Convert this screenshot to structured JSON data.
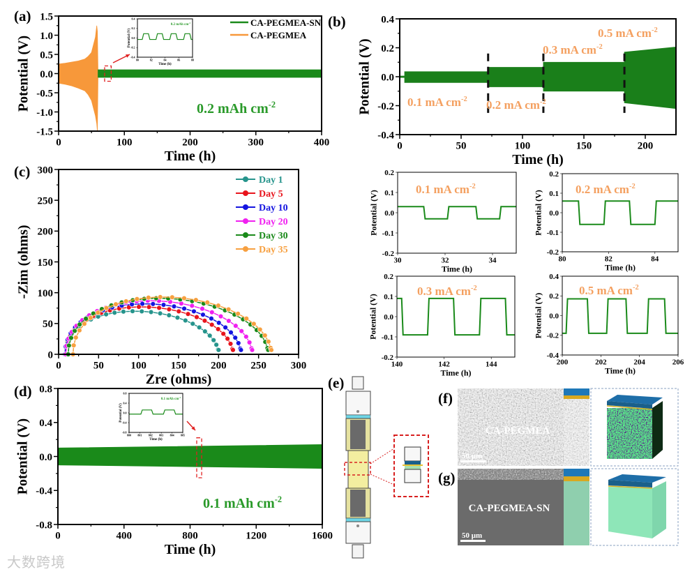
{
  "figure": {
    "panel_labels": {
      "a": "(a)",
      "b": "(b)",
      "c": "(c)",
      "d": "(d)",
      "e": "(e)",
      "f": "(f)",
      "g": "(g)"
    },
    "watermark": "大数跨境",
    "sem": {
      "f_label": "CA-PEGMEA",
      "g_label": "CA-PEGMEA-SN",
      "scale_bar_f": "50 μm",
      "scale_bar_g": "50 μm"
    }
  },
  "chart_data": [
    {
      "id": "a",
      "type": "line",
      "title": "",
      "xlabel": "Time (h)",
      "ylabel": "Potential (V)",
      "xlim": [
        0,
        400
      ],
      "ylim": [
        -1.5,
        1.5
      ],
      "xticks": [
        0,
        100,
        200,
        300,
        400
      ],
      "xtick_labels": [
        "0",
        "100",
        "200",
        "300",
        "400"
      ],
      "yticks": [
        -1.5,
        -1,
        -0.5,
        0,
        0.5,
        1,
        1.5
      ],
      "ytick_labels": [
        "-1.5",
        "-1.0",
        "-0.5",
        "0.0",
        "0.5",
        "1.0",
        "1.5"
      ],
      "legend": {
        "placement": "top-right",
        "entries": [
          {
            "label": "CA-PEGMEA-SN",
            "color": "#1a8a1a"
          },
          {
            "label": "CA-PEGMEA",
            "color": "#f7983a"
          }
        ]
      },
      "series": [
        {
          "name": "CA-PEGMEA",
          "kind": "envelope",
          "color": "#f7983a",
          "x": [
            0,
            10,
            20,
            30,
            40,
            45,
            50,
            53,
            56,
            58,
            59,
            60
          ],
          "upper": [
            0.25,
            0.27,
            0.3,
            0.33,
            0.38,
            0.45,
            0.55,
            0.75,
            0.95,
            1.25,
            1.1,
            0
          ],
          "lower": [
            -0.25,
            -0.28,
            -0.32,
            -0.38,
            -0.45,
            -0.55,
            -0.7,
            -0.9,
            -1.1,
            -1.3,
            -1.5,
            0
          ]
        },
        {
          "name": "CA-PEGMEA-SN",
          "kind": "envelope",
          "color": "#1a8a1a",
          "x": [
            60,
            400
          ],
          "upper": [
            0.1,
            0.1
          ],
          "lower": [
            -0.1,
            -0.1
          ]
        }
      ],
      "annotations": [
        {
          "text": "0.2 mAh cm",
          "sup": "-2",
          "color": "#2a9a2a"
        }
      ],
      "highlight": {
        "x": [
          70,
          80
        ],
        "y": [
          -0.2,
          0.2
        ]
      },
      "inset": {
        "xlabel": "Time (h)",
        "ylabel": "Potential (V)",
        "xlim": [
          80,
          88
        ],
        "ylim": [
          -0.4,
          0.4
        ],
        "xticks": [
          80,
          82,
          84,
          86,
          88
        ],
        "xtick_labels": [
          "80",
          "82",
          "84",
          "86",
          "88"
        ],
        "yticks": [
          -0.4,
          -0.2,
          0,
          0.2,
          0.4
        ],
        "ytick_labels": [
          "-0.4",
          "-0.2",
          "0.0",
          "0.2",
          "0.4"
        ],
        "wave": {
          "low": -0.03,
          "high": 0.09,
          "start": "low",
          "transitions": [
            80.7,
            81.6,
            82.7,
            83.6,
            84.7,
            85.6,
            86.7,
            87.6
          ]
        },
        "annotation": {
          "text": "0.2 mAh cm",
          "sup": "-2",
          "color": "#2a9a2a"
        }
      }
    },
    {
      "id": "b",
      "type": "line",
      "xlabel": "Time (h)",
      "ylabel": "Potential (V)",
      "xlim": [
        0,
        225
      ],
      "ylim": [
        -0.4,
        0.4
      ],
      "xticks": [
        0,
        50,
        100,
        150,
        200
      ],
      "xtick_labels": [
        "0",
        "50",
        "100",
        "150",
        "200"
      ],
      "yticks": [
        -0.4,
        -0.2,
        0,
        0.2,
        0.4
      ],
      "ytick_labels": [
        "-0.4",
        "-0.2",
        "0.0",
        "0.2",
        "0.4"
      ],
      "series": [
        {
          "name": "CA-PEGMEA-SN rate",
          "kind": "envelope",
          "color": "#1a7f1a",
          "x": [
            0,
            4,
            4,
            72,
            72,
            117,
            117,
            183,
            183,
            225
          ],
          "upper": [
            0.005,
            0.005,
            0.035,
            0.035,
            0.065,
            0.065,
            0.1,
            0.1,
            0.17,
            0.205
          ],
          "lower": [
            -0.005,
            -0.005,
            -0.04,
            -0.04,
            -0.07,
            -0.07,
            -0.1,
            -0.1,
            -0.18,
            -0.22
          ]
        }
      ],
      "dividers": [
        72,
        117,
        183
      ],
      "annotations": [
        {
          "text": "0.1 mA cm",
          "sup": "-2",
          "color": "#f4a060"
        },
        {
          "text": "0.2 mA cm",
          "sup": "-2",
          "color": "#f4a060"
        },
        {
          "text": "0.3 mA cm",
          "sup": "-2",
          "color": "#f4a060"
        },
        {
          "text": "0.5 mA cm",
          "sup": "-2",
          "color": "#f4a060"
        }
      ]
    },
    {
      "id": "c",
      "type": "scatter",
      "xlabel": "Zre (ohms)",
      "ylabel": "-Zim (ohms)",
      "xlim": [
        0,
        300
      ],
      "ylim": [
        0,
        300
      ],
      "xticks": [
        0,
        50,
        100,
        150,
        200,
        250,
        300
      ],
      "xtick_labels": [
        "0",
        "50",
        "100",
        "150",
        "200",
        "250",
        "300"
      ],
      "yticks": [
        0,
        50,
        100,
        150,
        200,
        250,
        300
      ],
      "ytick_labels": [
        "0",
        "50",
        "100",
        "150",
        "200",
        "250",
        "300"
      ],
      "legend": {
        "placement": "top-right"
      },
      "series": [
        {
          "name": "Day 1",
          "color": "#26948c",
          "r_start": 8,
          "r_end": 200,
          "peak": 70
        },
        {
          "name": "Day 5",
          "color": "#e8141c",
          "r_start": 8,
          "r_end": 218,
          "peak": 77
        },
        {
          "name": "Day 10",
          "color": "#1414e0",
          "r_start": 8,
          "r_end": 228,
          "peak": 82
        },
        {
          "name": "Day 20",
          "color": "#f020f0",
          "r_start": 9,
          "r_end": 242,
          "peak": 87
        },
        {
          "name": "Day 30",
          "color": "#1a8a1a",
          "r_start": 12,
          "r_end": 262,
          "peak": 91
        },
        {
          "name": "Day 35",
          "color": "#f7a040",
          "r_start": 18,
          "r_end": 266,
          "peak": 93
        }
      ]
    },
    {
      "id": "d",
      "type": "line",
      "xlabel": "Time (h)",
      "ylabel": "Potential (V)",
      "xlim": [
        0,
        1600
      ],
      "ylim": [
        -0.8,
        0.8
      ],
      "xticks": [
        0,
        400,
        800,
        1200,
        1600
      ],
      "xtick_labels": [
        "0",
        "400",
        "800",
        "1200",
        "1600"
      ],
      "yticks": [
        -0.8,
        -0.4,
        0,
        0.4,
        0.8
      ],
      "ytick_labels": [
        "-0.8",
        "-0.4",
        "0.0",
        "0.4",
        "0.8"
      ],
      "series": [
        {
          "name": "CA-PEGMEA-SN",
          "kind": "envelope",
          "color": "#1a8a1a",
          "x": [
            0,
            1600
          ],
          "upper": [
            0.1,
            0.14
          ],
          "lower": [
            -0.1,
            -0.14
          ]
        }
      ],
      "annotations": [
        {
          "text": "0.1 mAh cm",
          "sup": "-2",
          "color": "#2a9a2a"
        }
      ],
      "highlight": {
        "x": [
          840,
          870
        ],
        "y": [
          -0.25,
          0.22
        ]
      },
      "inset": {
        "xlabel": "Time (h)",
        "ylabel": "Potential (V)",
        "xlim": [
          800,
          805
        ],
        "ylim": [
          -0.8,
          0.8
        ],
        "xticks": [
          800,
          801,
          802,
          803,
          804,
          805
        ],
        "xtick_labels": [
          "800",
          "801",
          "802",
          "803",
          "804",
          "805"
        ],
        "yticks": [
          -0.8,
          -0.4,
          0,
          0.4,
          0.8
        ],
        "ytick_labels": [
          "-0.8",
          "-0.4",
          "0.0",
          "0.4",
          "0.8"
        ],
        "wave": {
          "low": -0.05,
          "high": 0.12,
          "start": "low",
          "transitions": [
            801.1,
            802.1,
            803.2,
            804.2
          ]
        },
        "annotation": {
          "text": "0.1 mAh cm",
          "sup": "-2",
          "color": "#2a9a2a"
        }
      }
    },
    {
      "id": "s1",
      "type": "line",
      "xlabel": "Time (h)",
      "ylabel": "Potential (V)",
      "xlim": [
        30,
        35
      ],
      "ylim": [
        -0.2,
        0.2
      ],
      "xticks": [
        30,
        32,
        34
      ],
      "xtick_labels": [
        "30",
        "32",
        "34"
      ],
      "yticks": [
        -0.2,
        -0.1,
        0,
        0.1,
        0.2
      ],
      "ytick_labels": [
        "-0.2",
        "-0.1",
        "0.0",
        "0.1",
        "0.2"
      ],
      "series": [
        {
          "name": "0.1 mA cm-2",
          "kind": "wave",
          "color": "#1a8a1a",
          "low": -0.03,
          "high": 0.03,
          "start": "high",
          "transitions": [
            31.1,
            32.1,
            33.3,
            34.3
          ]
        }
      ],
      "annotations": [
        {
          "text": "0.1 mA cm",
          "sup": "-2",
          "color": "#f4a060"
        }
      ]
    },
    {
      "id": "s2",
      "type": "line",
      "xlabel": "Time (h)",
      "ylabel": "Potential (V)",
      "xlim": [
        80,
        85
      ],
      "ylim": [
        -0.2,
        0.2
      ],
      "xticks": [
        80,
        82,
        84
      ],
      "xtick_labels": [
        "80",
        "82",
        "84"
      ],
      "yticks": [
        -0.2,
        -0.1,
        0,
        0.1,
        0.2
      ],
      "ytick_labels": [
        "-0.2",
        "-0.1",
        "0.0",
        "0.1",
        "0.2"
      ],
      "series": [
        {
          "name": "0.2 mA cm-2",
          "kind": "wave",
          "color": "#1a8a1a",
          "low": -0.06,
          "high": 0.06,
          "start": "high",
          "transitions": [
            80.7,
            81.8,
            82.9,
            84.0
          ]
        }
      ],
      "annotations": [
        {
          "text": "0.2 mA cm",
          "sup": "-2",
          "color": "#f4a060"
        }
      ]
    },
    {
      "id": "s3",
      "type": "line",
      "xlabel": "Time (h)",
      "ylabel": "Potential (V)",
      "xlim": [
        140,
        145
      ],
      "ylim": [
        -0.2,
        0.2
      ],
      "xticks": [
        140,
        142,
        144
      ],
      "xtick_labels": [
        "140",
        "142",
        "144"
      ],
      "yticks": [
        -0.2,
        -0.1,
        0,
        0.1,
        0.2
      ],
      "ytick_labels": [
        "-0.2",
        "-0.1",
        "0.0",
        "0.1",
        "0.2"
      ],
      "series": [
        {
          "name": "0.3 mA cm-2",
          "kind": "wave",
          "color": "#1a8a1a",
          "low": -0.09,
          "high": 0.09,
          "start": "high",
          "transitions": [
            140.2,
            141.3,
            142.4,
            143.5,
            144.6
          ]
        }
      ],
      "annotations": [
        {
          "text": "0.3 mA cm",
          "sup": "-2",
          "color": "#f4a060"
        }
      ]
    },
    {
      "id": "s4",
      "type": "line",
      "xlabel": "Time (h)",
      "ylabel": "Potential (V)",
      "xlim": [
        200,
        206
      ],
      "ylim": [
        -0.4,
        0.4
      ],
      "xticks": [
        200,
        202,
        204,
        206
      ],
      "xtick_labels": [
        "200",
        "202",
        "204",
        "206"
      ],
      "yticks": [
        -0.4,
        -0.2,
        0,
        0.2,
        0.4
      ],
      "ytick_labels": [
        "-0.4",
        "-0.2",
        "0.0",
        "0.2",
        "0.4"
      ],
      "series": [
        {
          "name": "0.5 mA cm-2",
          "kind": "wave",
          "color": "#1a8a1a",
          "low": -0.18,
          "high": 0.17,
          "start": "low",
          "transitions": [
            200.2,
            201.3,
            202.3,
            203.3,
            204.4,
            205.3
          ]
        }
      ],
      "annotations": [
        {
          "text": "0.5 mA cm",
          "sup": "-2",
          "color": "#f4a060"
        }
      ]
    }
  ]
}
